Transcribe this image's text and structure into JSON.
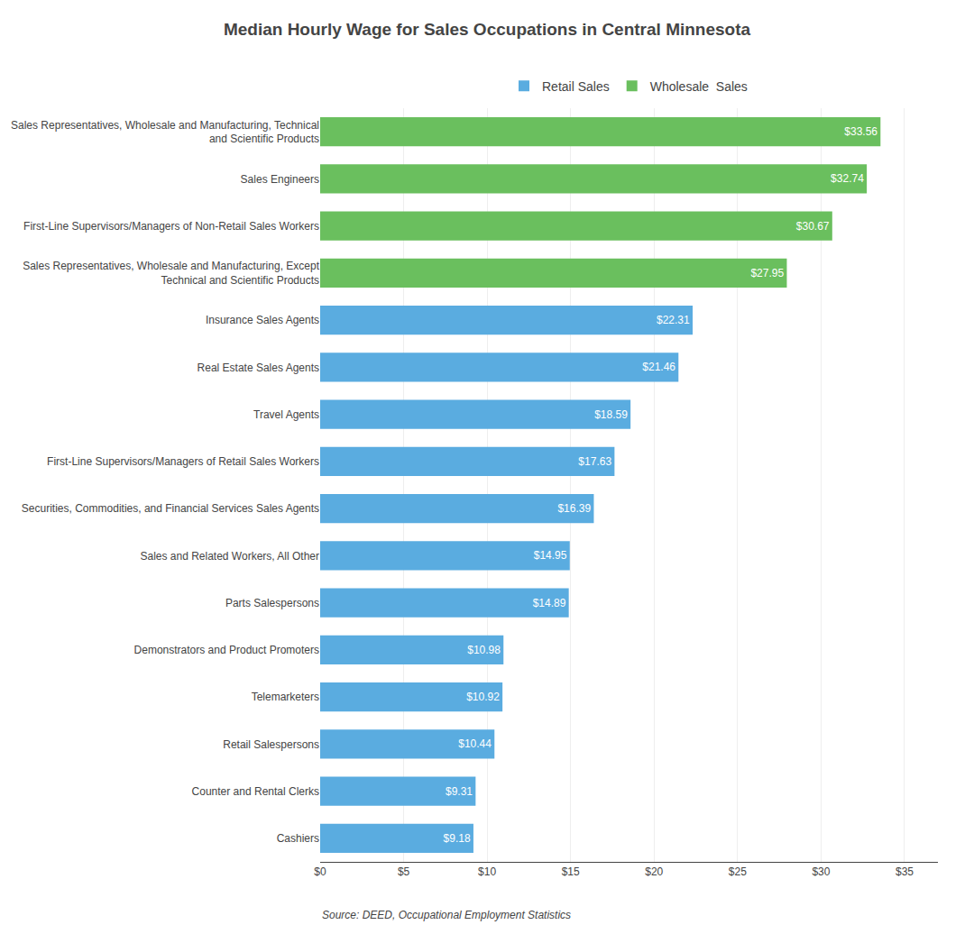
{
  "chart_data": {
    "type": "bar",
    "orientation": "horizontal",
    "title": "Median Hourly Wage for Sales Occupations in Central Minnesota",
    "annotations": [
      "Source: DEED, Occupational Employment Statistics"
    ],
    "categories": [
      "Sales Representatives, Wholesale and Manufacturing, Technical\nand Scientific Products",
      "Sales Engineers",
      "First-Line Supervisors/Managers of Non-Retail Sales Workers",
      "Sales Representatives, Wholesale and Manufacturing, Except\nTechnical and Scientific Products",
      "Insurance Sales Agents",
      "Real Estate Sales Agents",
      "Travel Agents",
      "First-Line Supervisors/Managers of Retail Sales Workers",
      "Securities, Commodities, and Financial Services Sales Agents",
      "Sales and Related Workers, All Other",
      "Parts Salespersons",
      "Demonstrators and Product Promoters",
      "Telemarketers",
      "Retail Salespersons",
      "Counter and Rental Clerks",
      "Cashiers"
    ],
    "series": [
      {
        "name": "Retail Sales",
        "color": "#5aace0",
        "values": [
          null,
          null,
          null,
          null,
          22.31,
          21.46,
          18.59,
          17.63,
          16.39,
          14.95,
          14.89,
          10.98,
          10.92,
          10.44,
          9.31,
          9.18
        ],
        "value_labels": [
          null,
          null,
          null,
          null,
          "$22.31",
          "$21.46",
          "$18.59",
          "$17.63",
          "$16.39",
          "$14.95",
          "$14.89",
          "$10.98",
          "$10.92",
          "$10.44",
          "$9.31",
          "$9.18"
        ]
      },
      {
        "name": "Wholesale  Sales",
        "color": "#6abf5e",
        "values": [
          33.56,
          32.74,
          30.67,
          27.95,
          null,
          null,
          null,
          null,
          null,
          null,
          null,
          null,
          null,
          null,
          null,
          null
        ],
        "value_labels": [
          "$33.56",
          "$32.74",
          "$30.67",
          "$27.95",
          null,
          null,
          null,
          null,
          null,
          null,
          null,
          null,
          null,
          null,
          null,
          null
        ]
      }
    ],
    "data_labels": true,
    "xlim": [
      0,
      37
    ],
    "xticks": [
      {
        "value": 0,
        "label": "$0"
      },
      {
        "value": 5,
        "label": "$5"
      },
      {
        "value": 10,
        "label": "$10"
      },
      {
        "value": 15,
        "label": "$15"
      },
      {
        "value": 20,
        "label": "$20"
      },
      {
        "value": 25,
        "label": "$25"
      },
      {
        "value": 30,
        "label": "$30"
      },
      {
        "value": 35,
        "label": "$35"
      }
    ],
    "grid": true,
    "legend": "top"
  }
}
